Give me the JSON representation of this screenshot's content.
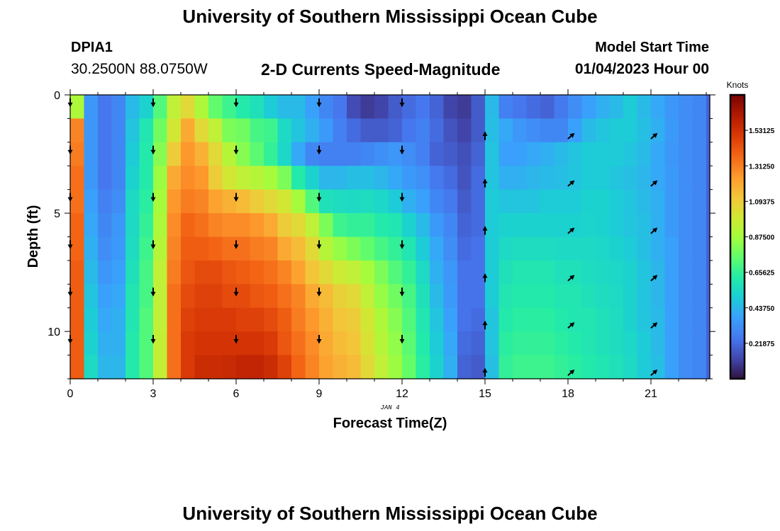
{
  "header": {
    "title": "University of Southern Mississippi Ocean Cube",
    "station_id": "DPIA1",
    "coordinates": "30.2500N  88.0750W",
    "subtitle": "2-D Currents Speed-Magnitude",
    "model_label": "Model Start Time",
    "model_time": "01/04/2023 Hour 00"
  },
  "footer": {
    "title": "University of Southern Mississippi Ocean Cube"
  },
  "chart_data": {
    "type": "heatmap",
    "title": "2-D Currents Speed-Magnitude",
    "xlabel": "Forecast Time(Z)",
    "ylabel": "Depth (ft)",
    "date_label": "JAN 4",
    "x_range": [
      0,
      23.1
    ],
    "y_range": [
      0,
      12
    ],
    "x_ticks": [
      0,
      3,
      6,
      9,
      12,
      15,
      18,
      21
    ],
    "x_tick_labels": [
      "0",
      "3",
      "6",
      "9",
      "12",
      "15",
      "18",
      "21"
    ],
    "y_ticks": [
      0,
      5,
      10
    ],
    "y_tick_labels": [
      "0",
      "5",
      "10"
    ],
    "time_step_hours": 0.5,
    "depth_step_ft": 1,
    "colorbar": {
      "title": "Knots",
      "min": 0,
      "max": 1.75,
      "ticks": [
        0.21875,
        0.4375,
        0.65625,
        0.875,
        1.09375,
        1.3125,
        1.53125
      ],
      "tick_labels": [
        "0.21875",
        "0.43750",
        "0.65625",
        "0.87500",
        "1.09375",
        "1.31250",
        "1.53125"
      ]
    },
    "vector_arrows": [
      {
        "time": 0,
        "direction": "down",
        "depths": [
          0.25,
          2.25,
          4.25,
          6.25,
          8.25,
          10.25
        ]
      },
      {
        "time": 3,
        "direction": "down",
        "depths": [
          0.25,
          2.25,
          4.25,
          6.25,
          8.25,
          10.25
        ]
      },
      {
        "time": 6,
        "direction": "down",
        "depths": [
          0.25,
          2.25,
          4.25,
          6.25,
          8.25,
          10.25
        ]
      },
      {
        "time": 9,
        "direction": "down",
        "depths": [
          0.25,
          2.25,
          4.25,
          6.25,
          8.25,
          10.25
        ]
      },
      {
        "time": 12,
        "direction": "down",
        "depths": [
          0.25,
          2.25,
          4.25,
          6.25,
          8.25,
          10.25
        ]
      },
      {
        "time": 15,
        "direction": "up",
        "depths": [
          1.75,
          3.75,
          5.75,
          7.75,
          9.75,
          11.75
        ]
      },
      {
        "time": 18,
        "direction": "up-right",
        "depths": [
          1.75,
          3.75,
          5.75,
          7.75,
          9.75,
          11.75
        ]
      },
      {
        "time": 21,
        "direction": "up-right",
        "depths": [
          1.75,
          3.75,
          5.75,
          7.75,
          9.75,
          11.75
        ]
      }
    ],
    "speed_knots": [
      [
        0.9,
        0.35,
        0.25,
        0.3,
        0.45,
        0.52,
        0.72,
        0.95,
        1.05,
        0.9,
        0.75,
        0.68,
        0.62,
        0.58,
        0.5,
        0.45,
        0.45,
        0.38,
        0.3,
        0.25,
        0.14,
        0.1,
        0.12,
        0.18,
        0.22,
        0.25,
        0.2,
        0.12,
        0.1,
        0.18,
        0.45,
        0.28,
        0.25,
        0.22,
        0.2,
        0.26,
        0.32,
        0.38,
        0.42,
        0.45,
        0.5,
        0.45,
        0.4,
        0.35,
        0.32,
        0.3,
        0.2
      ],
      [
        1.3,
        0.35,
        0.25,
        0.3,
        0.48,
        0.6,
        0.78,
        1.0,
        1.2,
        1.05,
        0.95,
        0.8,
        0.78,
        0.7,
        0.68,
        0.55,
        0.48,
        0.42,
        0.36,
        0.28,
        0.22,
        0.18,
        0.18,
        0.2,
        0.25,
        0.28,
        0.22,
        0.16,
        0.12,
        0.18,
        0.46,
        0.4,
        0.35,
        0.32,
        0.3,
        0.3,
        0.38,
        0.45,
        0.48,
        0.5,
        0.5,
        0.46,
        0.42,
        0.36,
        0.32,
        0.3,
        0.2
      ],
      [
        1.32,
        0.35,
        0.25,
        0.3,
        0.5,
        0.62,
        0.82,
        1.1,
        1.25,
        1.18,
        1.05,
        0.92,
        0.82,
        0.74,
        0.66,
        0.54,
        0.4,
        0.3,
        0.28,
        0.28,
        0.28,
        0.3,
        0.33,
        0.35,
        0.32,
        0.28,
        0.2,
        0.18,
        0.15,
        0.2,
        0.48,
        0.38,
        0.38,
        0.4,
        0.42,
        0.45,
        0.48,
        0.5,
        0.5,
        0.5,
        0.48,
        0.45,
        0.4,
        0.35,
        0.32,
        0.3,
        0.2
      ],
      [
        1.35,
        0.35,
        0.25,
        0.3,
        0.52,
        0.62,
        0.86,
        1.2,
        1.28,
        1.25,
        1.1,
        1.0,
        0.95,
        0.92,
        0.88,
        0.8,
        0.62,
        0.52,
        0.44,
        0.44,
        0.46,
        0.46,
        0.44,
        0.4,
        0.36,
        0.33,
        0.26,
        0.22,
        0.16,
        0.22,
        0.48,
        0.42,
        0.42,
        0.44,
        0.45,
        0.46,
        0.48,
        0.5,
        0.5,
        0.48,
        0.46,
        0.44,
        0.4,
        0.36,
        0.32,
        0.3,
        0.2
      ],
      [
        1.35,
        0.38,
        0.28,
        0.32,
        0.55,
        0.64,
        0.88,
        1.25,
        1.32,
        1.3,
        1.22,
        1.18,
        1.15,
        1.1,
        1.05,
        1.0,
        0.88,
        0.72,
        0.58,
        0.56,
        0.55,
        0.56,
        0.54,
        0.5,
        0.42,
        0.38,
        0.3,
        0.26,
        0.18,
        0.22,
        0.5,
        0.48,
        0.48,
        0.48,
        0.5,
        0.5,
        0.5,
        0.52,
        0.52,
        0.5,
        0.48,
        0.45,
        0.42,
        0.36,
        0.32,
        0.3,
        0.2
      ],
      [
        1.38,
        0.4,
        0.3,
        0.35,
        0.55,
        0.66,
        0.9,
        1.28,
        1.38,
        1.35,
        1.3,
        1.28,
        1.28,
        1.25,
        1.2,
        1.1,
        1.05,
        0.95,
        0.8,
        0.68,
        0.66,
        0.66,
        0.62,
        0.6,
        0.52,
        0.45,
        0.36,
        0.3,
        0.2,
        0.22,
        0.5,
        0.52,
        0.52,
        0.52,
        0.52,
        0.52,
        0.52,
        0.53,
        0.52,
        0.5,
        0.48,
        0.46,
        0.42,
        0.36,
        0.32,
        0.3,
        0.2
      ],
      [
        1.38,
        0.42,
        0.32,
        0.36,
        0.56,
        0.68,
        0.92,
        1.3,
        1.4,
        1.4,
        1.38,
        1.35,
        1.35,
        1.32,
        1.3,
        1.2,
        1.15,
        1.05,
        0.92,
        0.85,
        0.8,
        0.75,
        0.7,
        0.66,
        0.6,
        0.5,
        0.4,
        0.32,
        0.22,
        0.24,
        0.5,
        0.55,
        0.56,
        0.56,
        0.56,
        0.55,
        0.55,
        0.55,
        0.54,
        0.52,
        0.5,
        0.46,
        0.42,
        0.38,
        0.32,
        0.3,
        0.2
      ],
      [
        1.4,
        0.45,
        0.35,
        0.38,
        0.58,
        0.7,
        0.95,
        1.32,
        1.42,
        1.45,
        1.45,
        1.42,
        1.4,
        1.38,
        1.35,
        1.3,
        1.22,
        1.12,
        1.05,
        0.98,
        0.95,
        0.88,
        0.8,
        0.72,
        0.66,
        0.55,
        0.42,
        0.35,
        0.24,
        0.24,
        0.5,
        0.58,
        0.6,
        0.6,
        0.6,
        0.58,
        0.58,
        0.56,
        0.55,
        0.54,
        0.52,
        0.48,
        0.44,
        0.38,
        0.32,
        0.3,
        0.2
      ],
      [
        1.4,
        0.48,
        0.38,
        0.4,
        0.6,
        0.7,
        0.95,
        1.35,
        1.45,
        1.48,
        1.48,
        1.45,
        1.45,
        1.42,
        1.4,
        1.35,
        1.3,
        1.2,
        1.15,
        1.08,
        1.05,
        0.95,
        0.85,
        0.78,
        0.7,
        0.58,
        0.45,
        0.36,
        0.24,
        0.24,
        0.5,
        0.6,
        0.62,
        0.62,
        0.62,
        0.6,
        0.6,
        0.58,
        0.56,
        0.55,
        0.52,
        0.48,
        0.44,
        0.38,
        0.32,
        0.3,
        0.2
      ],
      [
        1.4,
        0.5,
        0.4,
        0.42,
        0.6,
        0.72,
        0.95,
        1.35,
        1.48,
        1.5,
        1.5,
        1.5,
        1.48,
        1.48,
        1.45,
        1.4,
        1.32,
        1.25,
        1.18,
        1.12,
        1.1,
        1.0,
        0.9,
        0.82,
        0.72,
        0.6,
        0.48,
        0.38,
        0.24,
        0.22,
        0.48,
        0.62,
        0.64,
        0.64,
        0.64,
        0.62,
        0.6,
        0.6,
        0.58,
        0.56,
        0.52,
        0.48,
        0.45,
        0.38,
        0.32,
        0.3,
        0.2
      ],
      [
        1.4,
        0.52,
        0.42,
        0.42,
        0.62,
        0.72,
        0.96,
        1.35,
        1.5,
        1.52,
        1.52,
        1.52,
        1.52,
        1.52,
        1.5,
        1.42,
        1.35,
        1.28,
        1.2,
        1.15,
        1.12,
        1.02,
        0.92,
        0.84,
        0.74,
        0.62,
        0.5,
        0.4,
        0.22,
        0.2,
        0.48,
        0.64,
        0.66,
        0.66,
        0.66,
        0.64,
        0.62,
        0.6,
        0.58,
        0.56,
        0.54,
        0.5,
        0.45,
        0.38,
        0.32,
        0.3,
        0.2
      ],
      [
        1.4,
        0.55,
        0.44,
        0.44,
        0.62,
        0.72,
        0.96,
        1.35,
        1.5,
        1.55,
        1.55,
        1.56,
        1.58,
        1.58,
        1.55,
        1.48,
        1.38,
        1.3,
        1.22,
        1.18,
        1.15,
        1.05,
        0.95,
        0.86,
        0.76,
        0.64,
        0.52,
        0.42,
        0.2,
        0.18,
        0.46,
        0.66,
        0.68,
        0.68,
        0.68,
        0.66,
        0.64,
        0.62,
        0.6,
        0.58,
        0.55,
        0.5,
        0.46,
        0.38,
        0.32,
        0.3,
        0.2
      ]
    ]
  }
}
